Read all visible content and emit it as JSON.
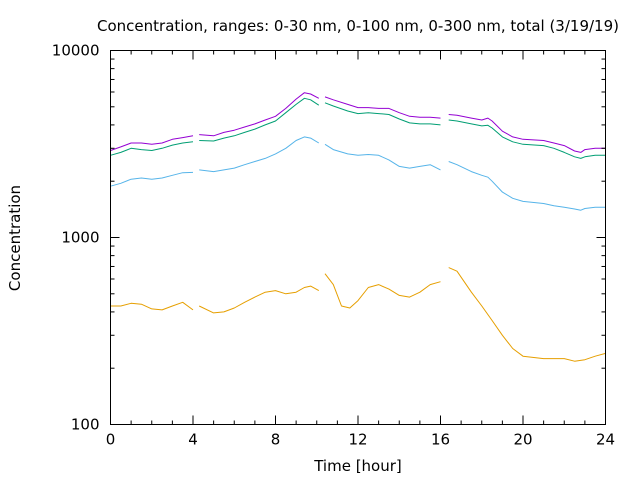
{
  "chart_data": {
    "type": "line",
    "title": "Concentration, ranges: 0-30 nm, 0-100 nm, 0-300 nm, total (3/19/19)",
    "xlabel": "Time [hour]",
    "ylabel": "Concentration",
    "xlim": [
      0,
      24
    ],
    "ylim": [
      100,
      10000
    ],
    "yscale": "log",
    "grid": false,
    "legend": "none",
    "x_ticks": [
      "0",
      "4",
      "8",
      "12",
      "16",
      "20",
      "24"
    ],
    "y_ticks": [
      "100",
      "1000",
      "10000"
    ],
    "series": [
      {
        "color": "#9400d3",
        "segments": [
          [
            [
              0,
              2920
            ],
            [
              0.5,
              3050
            ],
            [
              1,
              3200
            ],
            [
              1.5,
              3200
            ],
            [
              2,
              3150
            ],
            [
              2.5,
              3200
            ],
            [
              3,
              3350
            ],
            [
              3.5,
              3420
            ],
            [
              4,
              3500
            ]
          ],
          [
            [
              4.3,
              3550
            ],
            [
              5,
              3500
            ],
            [
              5.5,
              3650
            ],
            [
              6,
              3750
            ],
            [
              6.5,
              3900
            ],
            [
              7,
              4050
            ],
            [
              7.5,
              4250
            ],
            [
              8,
              4450
            ],
            [
              8.5,
              4900
            ],
            [
              9,
              5500
            ],
            [
              9.4,
              5950
            ],
            [
              9.7,
              5850
            ],
            [
              10.1,
              5550
            ]
          ],
          [
            [
              10.4,
              5650
            ],
            [
              10.8,
              5450
            ],
            [
              11.5,
              5150
            ],
            [
              12,
              4950
            ],
            [
              12.5,
              4950
            ],
            [
              13,
              4900
            ],
            [
              13.5,
              4900
            ],
            [
              14,
              4650
            ],
            [
              14.5,
              4450
            ],
            [
              15,
              4400
            ],
            [
              15.5,
              4400
            ],
            [
              16,
              4350
            ]
          ],
          [
            [
              16.4,
              4550
            ],
            [
              16.8,
              4500
            ],
            [
              17.5,
              4350
            ],
            [
              18,
              4250
            ],
            [
              18.3,
              4350
            ],
            [
              18.5,
              4200
            ],
            [
              19,
              3700
            ],
            [
              19.5,
              3450
            ],
            [
              20,
              3350
            ],
            [
              21,
              3300
            ],
            [
              21.5,
              3200
            ],
            [
              22,
              3100
            ],
            [
              22.5,
              2900
            ],
            [
              22.8,
              2850
            ],
            [
              23,
              2950
            ],
            [
              23.5,
              3000
            ],
            [
              24,
              3000
            ]
          ]
        ]
      },
      {
        "color": "#009e73",
        "segments": [
          [
            [
              0,
              2750
            ],
            [
              0.5,
              2850
            ],
            [
              1,
              3000
            ],
            [
              1.5,
              2950
            ],
            [
              2,
              2920
            ],
            [
              2.5,
              3000
            ],
            [
              3,
              3120
            ],
            [
              3.5,
              3200
            ],
            [
              4,
              3250
            ]
          ],
          [
            [
              4.3,
              3300
            ],
            [
              5,
              3280
            ],
            [
              5.5,
              3400
            ],
            [
              6,
              3500
            ],
            [
              6.5,
              3650
            ],
            [
              7,
              3800
            ],
            [
              7.5,
              4000
            ],
            [
              8,
              4200
            ],
            [
              8.5,
              4650
            ],
            [
              9,
              5150
            ],
            [
              9.4,
              5550
            ],
            [
              9.7,
              5450
            ],
            [
              10.1,
              5100
            ]
          ],
          [
            [
              10.4,
              5250
            ],
            [
              10.8,
              5050
            ],
            [
              11.5,
              4750
            ],
            [
              12,
              4600
            ],
            [
              12.5,
              4650
            ],
            [
              13,
              4600
            ],
            [
              13.5,
              4550
            ],
            [
              14,
              4300
            ],
            [
              14.5,
              4100
            ],
            [
              15,
              4050
            ],
            [
              15.5,
              4050
            ],
            [
              16,
              4000
            ]
          ],
          [
            [
              16.4,
              4250
            ],
            [
              16.8,
              4200
            ],
            [
              17.5,
              4050
            ],
            [
              18,
              3950
            ],
            [
              18.3,
              3980
            ],
            [
              18.5,
              3850
            ],
            [
              19,
              3450
            ],
            [
              19.5,
              3250
            ],
            [
              20,
              3150
            ],
            [
              21,
              3100
            ],
            [
              21.5,
              3000
            ],
            [
              22,
              2850
            ],
            [
              22.5,
              2700
            ],
            [
              22.8,
              2650
            ],
            [
              23,
              2700
            ],
            [
              23.5,
              2750
            ],
            [
              24,
              2750
            ]
          ]
        ]
      },
      {
        "color": "#56b4e9",
        "segments": [
          [
            [
              0,
              1880
            ],
            [
              0.5,
              1950
            ],
            [
              1,
              2050
            ],
            [
              1.5,
              2080
            ],
            [
              2,
              2050
            ],
            [
              2.5,
              2080
            ],
            [
              3,
              2150
            ],
            [
              3.5,
              2220
            ],
            [
              4,
              2230
            ]
          ],
          [
            [
              4.3,
              2300
            ],
            [
              5,
              2250
            ],
            [
              5.5,
              2300
            ],
            [
              6,
              2350
            ],
            [
              6.5,
              2450
            ],
            [
              7,
              2550
            ],
            [
              7.5,
              2650
            ],
            [
              8,
              2800
            ],
            [
              8.5,
              3000
            ],
            [
              9,
              3300
            ],
            [
              9.4,
              3450
            ],
            [
              9.7,
              3400
            ],
            [
              10.1,
              3200
            ]
          ],
          [
            [
              10.4,
              3150
            ],
            [
              10.8,
              2950
            ],
            [
              11.5,
              2800
            ],
            [
              12,
              2750
            ],
            [
              12.5,
              2780
            ],
            [
              13,
              2750
            ],
            [
              13.5,
              2600
            ],
            [
              14,
              2400
            ],
            [
              14.5,
              2350
            ],
            [
              15,
              2400
            ],
            [
              15.5,
              2450
            ],
            [
              16,
              2300
            ]
          ],
          [
            [
              16.4,
              2550
            ],
            [
              16.8,
              2450
            ],
            [
              17.5,
              2250
            ],
            [
              18,
              2150
            ],
            [
              18.3,
              2100
            ],
            [
              18.5,
              2000
            ],
            [
              19,
              1750
            ],
            [
              19.5,
              1620
            ],
            [
              20,
              1560
            ],
            [
              21,
              1520
            ],
            [
              21.5,
              1480
            ],
            [
              22,
              1450
            ],
            [
              22.5,
              1420
            ],
            [
              22.8,
              1400
            ],
            [
              23,
              1430
            ],
            [
              23.5,
              1450
            ],
            [
              24,
              1450
            ]
          ]
        ]
      },
      {
        "color": "#e69f00",
        "segments": [
          [
            [
              0,
              430
            ],
            [
              0.5,
              430
            ],
            [
              1,
              445
            ],
            [
              1.5,
              440
            ],
            [
              2,
              415
            ],
            [
              2.5,
              410
            ],
            [
              3,
              430
            ],
            [
              3.5,
              450
            ],
            [
              4,
              410
            ]
          ],
          [
            [
              4.3,
              430
            ],
            [
              5,
              395
            ],
            [
              5.5,
              400
            ],
            [
              6,
              420
            ],
            [
              6.5,
              450
            ],
            [
              7,
              480
            ],
            [
              7.5,
              510
            ],
            [
              8,
              520
            ],
            [
              8.5,
              500
            ],
            [
              9,
              510
            ],
            [
              9.4,
              540
            ],
            [
              9.7,
              550
            ],
            [
              10.1,
              520
            ]
          ],
          [
            [
              10.4,
              640
            ],
            [
              10.8,
              560
            ],
            [
              11.2,
              430
            ],
            [
              11.6,
              420
            ],
            [
              12,
              460
            ],
            [
              12.5,
              540
            ],
            [
              13,
              560
            ],
            [
              13.5,
              530
            ],
            [
              14,
              490
            ],
            [
              14.5,
              480
            ],
            [
              15,
              510
            ],
            [
              15.5,
              560
            ],
            [
              16,
              580
            ]
          ],
          [
            [
              16.4,
              690
            ],
            [
              16.8,
              660
            ],
            [
              17.5,
              510
            ],
            [
              18,
              430
            ],
            [
              18.5,
              360
            ],
            [
              19,
              300
            ],
            [
              19.5,
              255
            ],
            [
              20,
              232
            ],
            [
              21,
              225
            ],
            [
              21.5,
              225
            ],
            [
              22,
              225
            ],
            [
              22.5,
              218
            ],
            [
              23,
              222
            ],
            [
              23.5,
              232
            ],
            [
              24,
              240
            ]
          ]
        ]
      }
    ]
  }
}
